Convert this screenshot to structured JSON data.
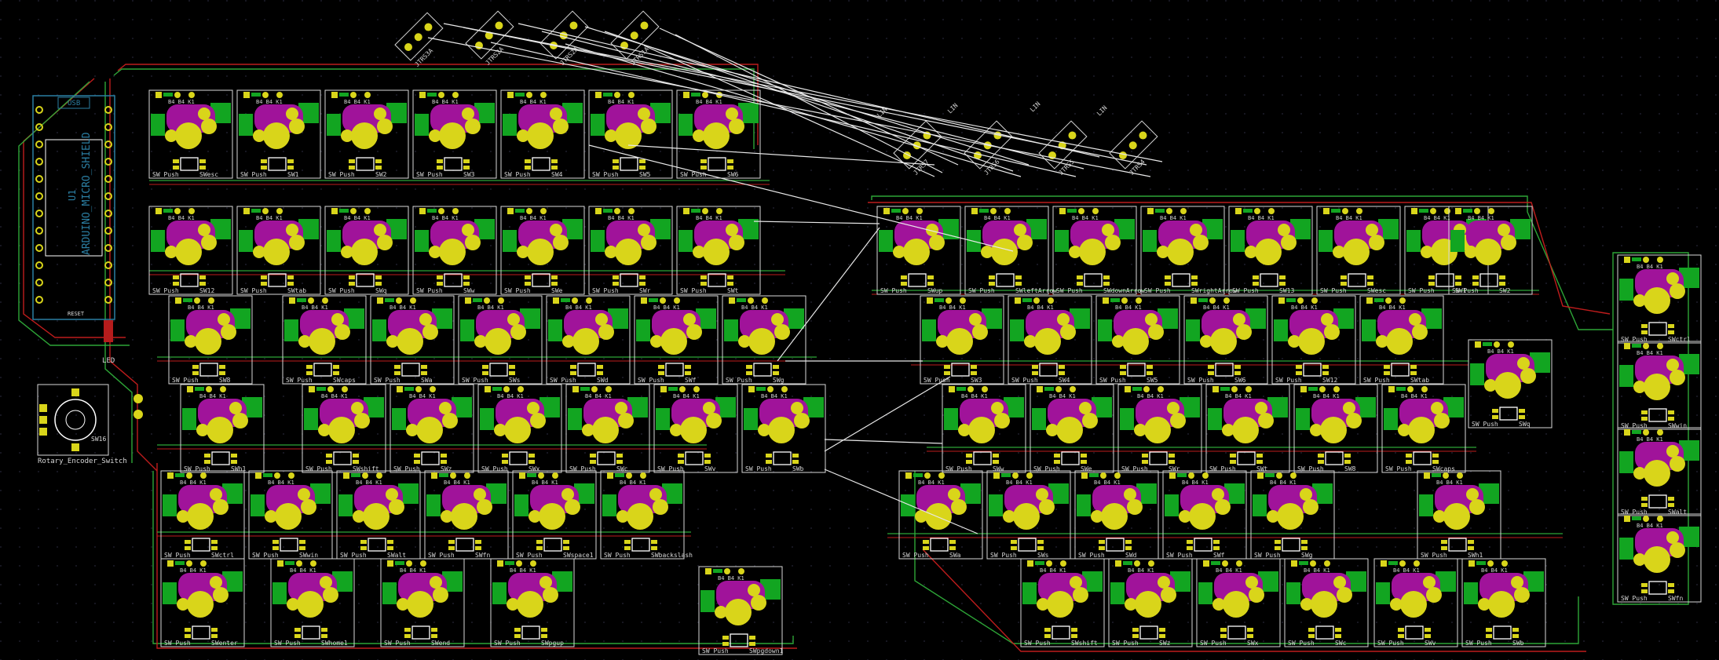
{
  "colors": {
    "background": "#000000",
    "grid_dot": "#2a2a3a",
    "outline": "#d8d8d8",
    "ratsnest": "#e8e8e8",
    "trace_front": "#c81e1e",
    "trace_back": "#2fae3a",
    "pad": "#d9d51a",
    "mask": "#a0139a",
    "silk_pad": "#12a521",
    "fab_text": "#35a7c9",
    "ref_text": "#b12ac4",
    "controller_outline": "#2b7fa3"
  },
  "icons": [
    "switch-footprint-icon",
    "diode-pad-icon",
    "rotary-encoder-icon",
    "jumper-icon"
  ],
  "controller": {
    "usb_label": "USB",
    "ref": "U1",
    "name": "ARDUINO_MICRO_SHIELD",
    "led_label": "LED",
    "reset_label": "RESET"
  },
  "encoder": {
    "ref": "SW16",
    "name": "Rotary_Encoder_Switch"
  },
  "jumpers_left": [
    "JTRS3A",
    "JTRS2A",
    "JTRS2A",
    "JTRS1A"
  ],
  "jumpers_right": [
    "JTRS7",
    "JTRS6",
    "JTRS5",
    "JTRS4"
  ],
  "switch_value": "SW_Push",
  "diode_ref": "D",
  "switch_names": [
    "SWesc",
    "SW1",
    "SW2",
    "SW3",
    "SW4",
    "SW5",
    "SW6",
    "SW12",
    "SWtab",
    "SWq",
    "SWw",
    "SWe",
    "SWr",
    "SWt",
    "SW8",
    "SWcaps",
    "SWa",
    "SWs",
    "SWd",
    "SWf",
    "SWg",
    "SWh1",
    "SWshift",
    "SWz",
    "SWx",
    "SWc",
    "SWv",
    "SWb",
    "SWctrl",
    "SWwin",
    "SWalt",
    "SWfn",
    "SWspace1",
    "SWbackslash",
    "SWenter",
    "SWhome1",
    "SWend",
    "SWpgup",
    "SWpgdown1",
    "SWup",
    "SWleftArrow",
    "SWdownArrow",
    "SWrightArrow",
    "SW13"
  ],
  "silk_token": "B4 B4 K1",
  "net_label": "LIN"
}
